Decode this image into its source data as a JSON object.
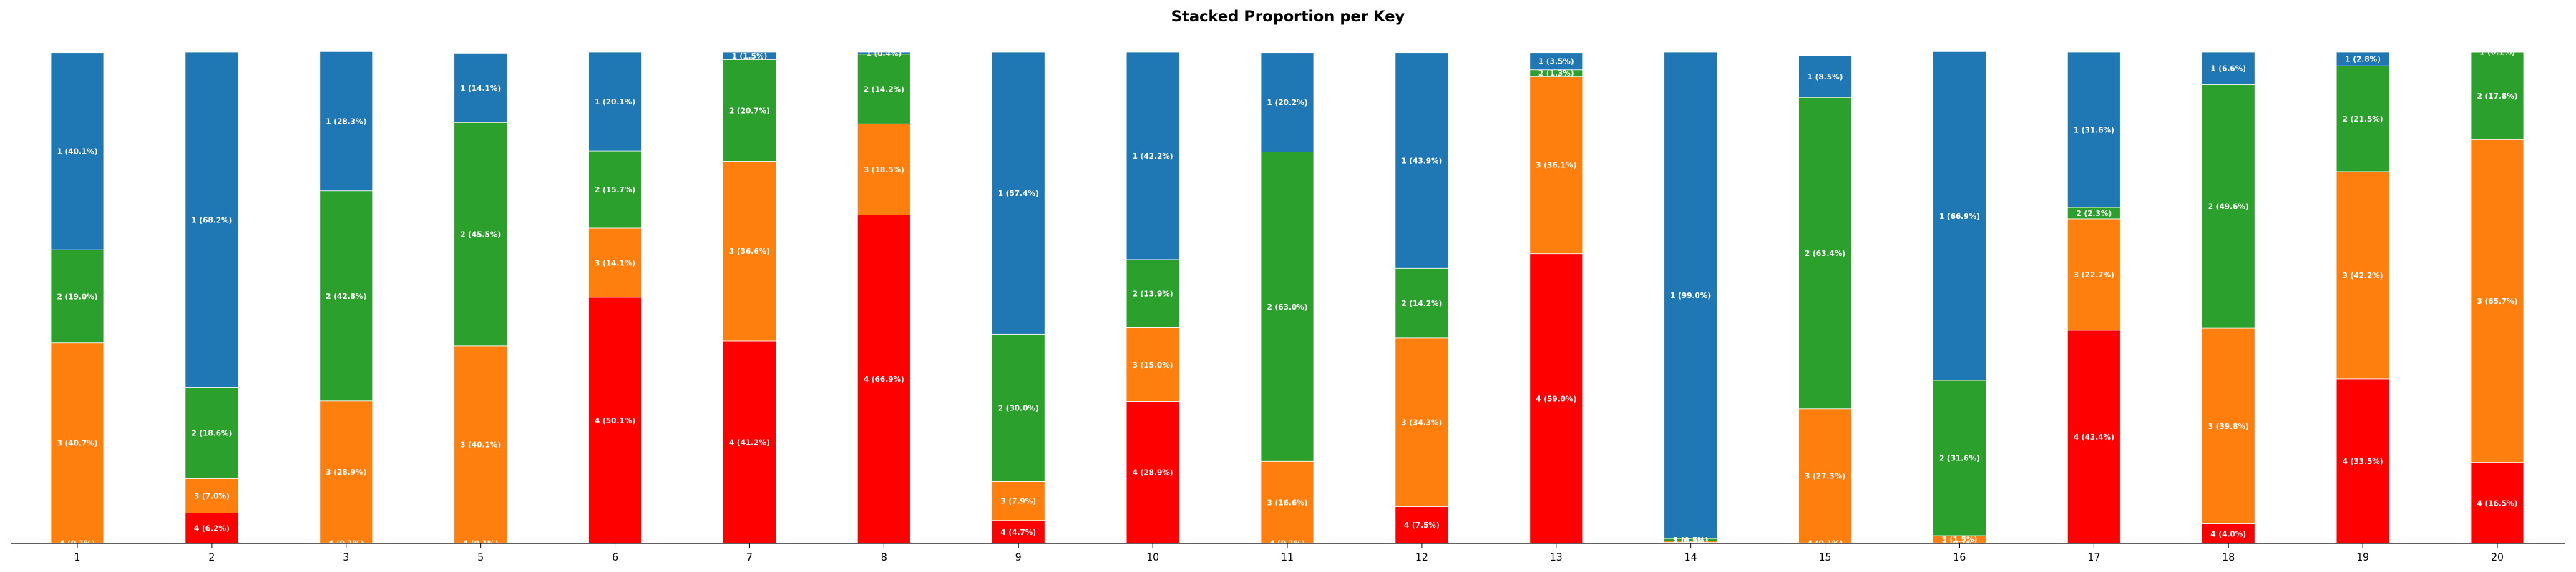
{
  "chart_data": {
    "type": "bar",
    "stacked": true,
    "normalized": true,
    "title": "Stacked Proportion per Key",
    "xlabel": "",
    "ylabel": "",
    "ylim": [
      0,
      100
    ],
    "grid": false,
    "legend": "none",
    "categories": [
      "1",
      "2",
      "3",
      "5",
      "6",
      "7",
      "8",
      "9",
      "10",
      "11",
      "12",
      "13",
      "14",
      "15",
      "16",
      "17",
      "18",
      "19",
      "20"
    ],
    "series": [
      {
        "name": "4",
        "color": "#ff0000",
        "values": [
          0.1,
          6.2,
          0.1,
          0.1,
          50.1,
          41.2,
          66.9,
          4.7,
          28.9,
          0.1,
          7.5,
          59.0,
          0.2,
          0.1,
          0.1,
          43.4,
          4.0,
          33.5,
          16.5
        ]
      },
      {
        "name": "3",
        "color": "#ff7f0e",
        "values": [
          40.7,
          7.0,
          28.9,
          40.1,
          14.1,
          36.6,
          18.5,
          7.9,
          15.0,
          16.6,
          34.3,
          36.1,
          0.3,
          27.3,
          1.5,
          22.7,
          39.8,
          42.2,
          65.7
        ]
      },
      {
        "name": "2",
        "color": "#2ca02c",
        "values": [
          19.0,
          18.6,
          42.8,
          45.5,
          15.7,
          20.7,
          14.2,
          30.0,
          13.9,
          63.0,
          14.2,
          1.3,
          0.5,
          63.4,
          31.6,
          2.3,
          49.6,
          21.5,
          17.8
        ]
      },
      {
        "name": "1",
        "color": "#1f77b4",
        "values": [
          40.1,
          68.2,
          28.3,
          14.1,
          20.1,
          1.5,
          0.4,
          57.4,
          42.2,
          20.2,
          43.9,
          3.5,
          99.0,
          8.5,
          66.9,
          31.6,
          6.6,
          2.8,
          0.1
        ]
      }
    ],
    "segment_labels": [
      [
        "4 (0.1%)",
        "3 (40.7%)",
        "2 (19.0%)",
        "1 (40.1%)"
      ],
      [
        "4 (6.2%)",
        "3 (7.0%)",
        "2 (18.6%)",
        "1 (68.2%)"
      ],
      [
        "4 (0.1%)",
        "3 (28.9%)",
        "2 (42.8%)",
        "1 (28.3%)"
      ],
      [
        "4 (0.1%)",
        "3 (40.1%)",
        "2 (45.5%)",
        "1 (14.1%)"
      ],
      [
        "4 (50.1%)",
        "3 (14.1%)",
        "2 (15.7%)",
        "1 (20.1%)"
      ],
      [
        "4 (41.2%)",
        "3 (36.6%)",
        "2 (20.7%)",
        "1 (1.5%)"
      ],
      [
        "4 (66.9%)",
        "3 (18.5%)",
        "2 (14.2%)",
        "1 (0.4%)"
      ],
      [
        "4 (4.7%)",
        "3 (7.9%)",
        "2 (30.0%)",
        "1 (57.4%)"
      ],
      [
        "4 (28.9%)",
        "3 (15.0%)",
        "2 (13.9%)",
        "1 (42.2%)"
      ],
      [
        "4 (0.1%)",
        "3 (16.6%)",
        "2 (63.0%)",
        "1 (20.2%)"
      ],
      [
        "4 (7.5%)",
        "3 (34.3%)",
        "2 (14.2%)",
        "1 (43.9%)"
      ],
      [
        "4 (59.0%)",
        "3 (36.1%)",
        "2 (1.3%)",
        "1 (3.5%)"
      ],
      [
        "4 (0.2%)",
        "3 (0.3%)",
        "2 (0.5%)",
        "1 (99.0%)"
      ],
      [
        "4 (0.1%)",
        "3 (27.3%)",
        "2 (63.4%)",
        "1 (8.5%)"
      ],
      [
        "4 (0.1%)",
        "3 (1.5%)",
        "2 (31.6%)",
        "1 (66.9%)"
      ],
      [
        "4 (43.4%)",
        "3 (22.7%)",
        "2 (2.3%)",
        "1 (31.6%)"
      ],
      [
        "4 (4.0%)",
        "3 (39.8%)",
        "2 (49.6%)",
        "1 (6.6%)"
      ],
      [
        "4 (33.5%)",
        "3 (42.2%)",
        "2 (21.5%)",
        "1 (2.8%)"
      ],
      [
        "4 (16.5%)",
        "3 (65.7%)",
        "2 (17.8%)",
        "1 (0.1%)"
      ]
    ]
  }
}
